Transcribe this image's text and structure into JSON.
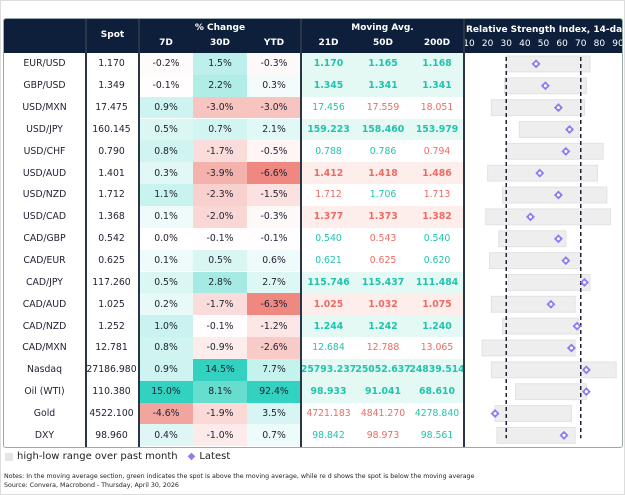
{
  "chart_data": {
    "type": "table",
    "headers": {
      "spot": "Spot",
      "pct_change_group": "% Change",
      "pct_change": [
        "7D",
        "30D",
        "YTD"
      ],
      "ma_group": "Moving Avg.",
      "ma": [
        "21D",
        "50D",
        "200D"
      ],
      "rsi_group": "Relative Strength Index, 14-day",
      "rsi_ticks": [
        "10",
        "20",
        "30",
        "40",
        "50",
        "60",
        "70",
        "80",
        "90"
      ]
    },
    "rsi_axis": {
      "min": 10,
      "max": 90,
      "reference_lines": [
        30,
        70
      ]
    },
    "colors": {
      "header_bg": "#0d1f3a",
      "positive": "#33d1c0",
      "negative": "#ee8880",
      "ma_above_text": "#1fc4ad",
      "ma_below_text": "#ee6a62",
      "range_bar": "#eeeeee",
      "latest_marker": "#8f7cf0"
    },
    "rows": [
      {
        "name": "EUR/USD",
        "spot": "1.170",
        "chg": [
          "-0.2%",
          "1.5%",
          "-0.3%"
        ],
        "ma": [
          "1.170",
          "1.165",
          "1.168"
        ],
        "ma_above": [
          true,
          true,
          true
        ],
        "rsi_low": 30,
        "rsi_high": 75,
        "rsi_latest": 46
      },
      {
        "name": "GBP/USD",
        "spot": "1.349",
        "chg": [
          "-0.1%",
          "2.2%",
          "0.3%"
        ],
        "ma": [
          "1.345",
          "1.341",
          "1.341"
        ],
        "ma_above": [
          true,
          true,
          true
        ],
        "rsi_low": 29,
        "rsi_high": 73,
        "rsi_latest": 51
      },
      {
        "name": "USD/MXN",
        "spot": "17.475",
        "chg": [
          "0.9%",
          "-3.0%",
          "-3.0%"
        ],
        "ma": [
          "17.456",
          "17.559",
          "18.051"
        ],
        "ma_above": [
          true,
          false,
          false
        ],
        "rsi_low": 22,
        "rsi_high": 72,
        "rsi_latest": 58
      },
      {
        "name": "USD/JPY",
        "spot": "160.145",
        "chg": [
          "0.5%",
          "0.7%",
          "2.1%"
        ],
        "ma": [
          "159.223",
          "158.460",
          "153.979"
        ],
        "ma_above": [
          true,
          true,
          true
        ],
        "rsi_low": 37,
        "rsi_high": 69,
        "rsi_latest": 64
      },
      {
        "name": "USD/CHF",
        "spot": "0.790",
        "chg": [
          "0.8%",
          "-1.7%",
          "-0.5%"
        ],
        "ma": [
          "0.788",
          "0.786",
          "0.794"
        ],
        "ma_above": [
          true,
          true,
          false
        ],
        "rsi_low": 30,
        "rsi_high": 82,
        "rsi_latest": 62
      },
      {
        "name": "USD/AUD",
        "spot": "1.401",
        "chg": [
          "0.3%",
          "-3.9%",
          "-6.6%"
        ],
        "ma": [
          "1.412",
          "1.418",
          "1.486"
        ],
        "ma_above": [
          false,
          false,
          false
        ],
        "rsi_low": 20,
        "rsi_high": 79,
        "rsi_latest": 48
      },
      {
        "name": "USD/NZD",
        "spot": "1.712",
        "chg": [
          "1.1%",
          "-2.3%",
          "-1.5%"
        ],
        "ma": [
          "1.712",
          "1.706",
          "1.713"
        ],
        "ma_above": [
          false,
          true,
          false
        ],
        "rsi_low": 28,
        "rsi_high": 84,
        "rsi_latest": 58
      },
      {
        "name": "USD/CAD",
        "spot": "1.368",
        "chg": [
          "0.1%",
          "-2.0%",
          "-0.3%"
        ],
        "ma": [
          "1.377",
          "1.373",
          "1.382"
        ],
        "ma_above": [
          false,
          false,
          false
        ],
        "rsi_low": 19,
        "rsi_high": 86,
        "rsi_latest": 43
      },
      {
        "name": "CAD/GBP",
        "spot": "0.542",
        "chg": [
          "0.0%",
          "-0.1%",
          "-0.1%"
        ],
        "ma": [
          "0.540",
          "0.543",
          "0.540"
        ],
        "ma_above": [
          true,
          false,
          true
        ],
        "rsi_low": 26,
        "rsi_high": 62,
        "rsi_latest": 58
      },
      {
        "name": "CAD/EUR",
        "spot": "0.625",
        "chg": [
          "0.1%",
          "0.5%",
          "0.6%"
        ],
        "ma": [
          "0.621",
          "0.625",
          "0.620"
        ],
        "ma_above": [
          true,
          false,
          true
        ],
        "rsi_low": 21,
        "rsi_high": 70,
        "rsi_latest": 62
      },
      {
        "name": "CAD/JPY",
        "spot": "117.260",
        "chg": [
          "0.5%",
          "2.8%",
          "2.7%"
        ],
        "ma": [
          "115.746",
          "115.437",
          "111.484"
        ],
        "ma_above": [
          true,
          true,
          true
        ],
        "rsi_low": 31,
        "rsi_high": 75,
        "rsi_latest": 72
      },
      {
        "name": "CAD/AUD",
        "spot": "1.025",
        "chg": [
          "0.2%",
          "-1.7%",
          "-6.3%"
        ],
        "ma": [
          "1.025",
          "1.032",
          "1.075"
        ],
        "ma_above": [
          false,
          false,
          false
        ],
        "rsi_low": 22,
        "rsi_high": 67,
        "rsi_latest": 54
      },
      {
        "name": "CAD/NZD",
        "spot": "1.252",
        "chg": [
          "1.0%",
          "-0.1%",
          "-1.2%"
        ],
        "ma": [
          "1.244",
          "1.242",
          "1.240"
        ],
        "ma_above": [
          true,
          true,
          true
        ],
        "rsi_low": 28,
        "rsi_high": 69,
        "rsi_latest": 68
      },
      {
        "name": "CAD/MXN",
        "spot": "12.781",
        "chg": [
          "0.8%",
          "-0.9%",
          "-2.6%"
        ],
        "ma": [
          "12.684",
          "12.788",
          "13.065"
        ],
        "ma_above": [
          true,
          false,
          false
        ],
        "rsi_low": 17,
        "rsi_high": 67,
        "rsi_latest": 65
      },
      {
        "name": "Nasdaq",
        "spot": "27186.980",
        "chg": [
          "0.9%",
          "14.5%",
          "7.7%"
        ],
        "ma": [
          "25793.237",
          "25052.637",
          "24839.514"
        ],
        "ma_above": [
          true,
          true,
          true
        ],
        "rsi_low": 22,
        "rsi_high": 89,
        "rsi_latest": 73
      },
      {
        "name": "Oil (WTI)",
        "spot": "110.380",
        "chg": [
          "15.0%",
          "8.1%",
          "92.4%"
        ],
        "ma": [
          "98.933",
          "91.041",
          "68.610"
        ],
        "ma_above": [
          true,
          true,
          true
        ],
        "rsi_low": 35,
        "rsi_high": 73,
        "rsi_latest": 73
      },
      {
        "name": "Gold",
        "spot": "4522.100",
        "chg": [
          "-4.6%",
          "-1.9%",
          "3.5%"
        ],
        "ma": [
          "4721.183",
          "4841.270",
          "4278.840"
        ],
        "ma_above": [
          false,
          false,
          true
        ],
        "rsi_low": 24,
        "rsi_high": 65,
        "rsi_latest": 24
      },
      {
        "name": "DXY",
        "spot": "98.960",
        "chg": [
          "0.4%",
          "-1.0%",
          "0.7%"
        ],
        "ma": [
          "98.842",
          "98.973",
          "98.561"
        ],
        "ma_above": [
          true,
          false,
          true
        ],
        "rsi_low": 25,
        "rsi_high": 67,
        "rsi_latest": 61
      }
    ]
  },
  "legend": {
    "range": "high-low range over past month",
    "latest": "Latest"
  },
  "notes": "Notes: In the moving average section, green indicates the spot is above the moving average, while re    d shows the spot is below   the moving average",
  "source": "Source: Convera, Macrobond - Thursday, April 30, 2026"
}
